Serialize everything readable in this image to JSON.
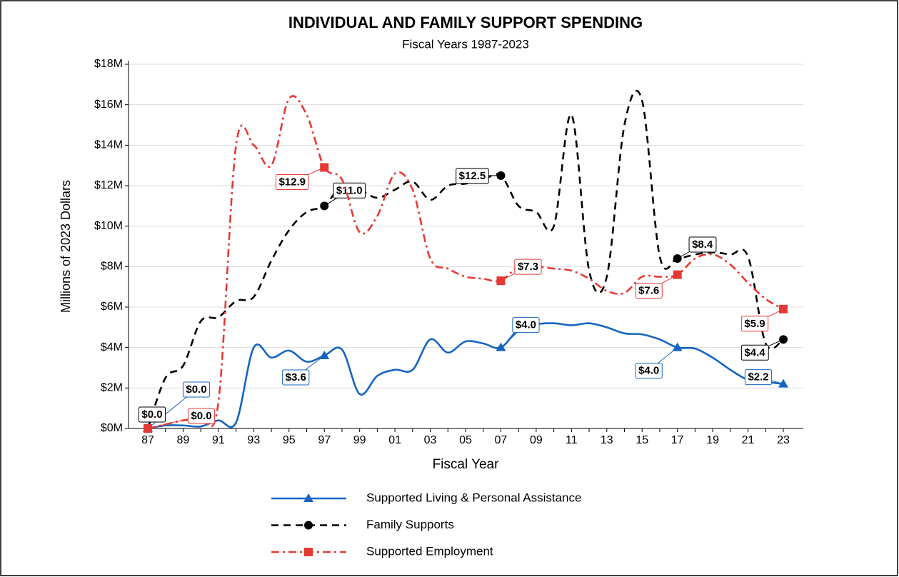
{
  "chart_data": {
    "type": "line",
    "title": "INDIVIDUAL AND FAMILY SUPPORT SPENDING",
    "subtitle": "Fiscal Years 1987-2023",
    "y_label": "Millions of 2023 Dollars",
    "x_label": "Fiscal Year",
    "categories": [
      "87",
      null,
      "89",
      null,
      "91",
      null,
      "93",
      null,
      "95",
      null,
      "97",
      null,
      "99",
      null,
      "01",
      null,
      "03",
      null,
      "05",
      null,
      "07",
      null,
      "09",
      null,
      "11",
      null,
      "13",
      null,
      "15",
      null,
      "17",
      null,
      "19",
      null,
      "21",
      null,
      "23"
    ],
    "ylim": [
      0,
      18
    ],
    "yticks": [
      {
        "value": 0,
        "label": "$0M"
      },
      {
        "value": 2,
        "label": "$2M"
      },
      {
        "value": 4,
        "label": "$4M"
      },
      {
        "value": 6,
        "label": "$6M"
      },
      {
        "value": 8,
        "label": "$8M"
      },
      {
        "value": 10,
        "label": "$10M"
      },
      {
        "value": 12,
        "label": "$12M"
      },
      {
        "value": 14,
        "label": "$14M"
      },
      {
        "value": 16,
        "label": "$16M"
      },
      {
        "value": 18,
        "label": "$18M"
      }
    ],
    "grid": true,
    "series": [
      {
        "name": "Supported Living & Personal Assistance",
        "color": "#1565c0",
        "marker": "triangle",
        "dash": "solid",
        "values": [
          0.0,
          0.15,
          0.15,
          0.1,
          0.4,
          0.3,
          4.0,
          3.5,
          3.85,
          3.3,
          3.6,
          3.9,
          1.7,
          2.6,
          2.9,
          2.9,
          4.4,
          3.75,
          4.3,
          4.2,
          4.0,
          4.9,
          5.15,
          5.2,
          5.1,
          5.2,
          5.0,
          4.7,
          4.65,
          4.4,
          4.0,
          3.95,
          3.5,
          2.9,
          2.4,
          2.3,
          2.2
        ],
        "value_labels": [
          "$0.0",
          null,
          null,
          null,
          null,
          null,
          null,
          null,
          null,
          null,
          "$3.6",
          null,
          null,
          null,
          null,
          null,
          null,
          null,
          null,
          null,
          "$4.0",
          null,
          null,
          null,
          null,
          null,
          null,
          null,
          null,
          null,
          "$4.0",
          null,
          null,
          null,
          null,
          null,
          "$2.2"
        ]
      },
      {
        "name": "Family Supports",
        "color": "#000000",
        "marker": "circle",
        "dash": "dashed",
        "values": [
          0.0,
          2.5,
          3.1,
          5.3,
          5.5,
          6.3,
          6.5,
          8.3,
          9.8,
          10.7,
          11.0,
          12.0,
          11.8,
          11.4,
          11.8,
          12.2,
          11.3,
          12.0,
          12.1,
          12.3,
          12.5,
          11.0,
          10.7,
          10.0,
          15.5,
          7.8,
          7.5,
          15.0,
          16.2,
          8.5,
          8.4,
          8.6,
          8.7,
          8.6,
          8.5,
          4.2,
          4.4
        ],
        "value_labels": [
          "$0.0",
          null,
          null,
          null,
          null,
          null,
          null,
          null,
          null,
          null,
          "$11.0",
          null,
          null,
          null,
          null,
          null,
          null,
          null,
          null,
          null,
          "$12.5",
          null,
          null,
          null,
          null,
          null,
          null,
          null,
          null,
          null,
          "$8.4",
          null,
          null,
          null,
          null,
          null,
          "$4.4"
        ]
      },
      {
        "name": "Supported Employment",
        "color": "#e53935",
        "marker": "square",
        "dash": "dashdot",
        "values": [
          0.0,
          0.2,
          0.4,
          0.5,
          1.3,
          14.0,
          14.0,
          13.0,
          16.3,
          15.5,
          12.9,
          12.3,
          9.7,
          10.5,
          12.6,
          11.8,
          8.4,
          7.9,
          7.5,
          7.4,
          7.3,
          8.0,
          8.0,
          7.9,
          7.8,
          7.4,
          6.8,
          6.7,
          7.5,
          7.5,
          7.6,
          8.4,
          8.6,
          8.1,
          7.2,
          6.4,
          5.9
        ],
        "value_labels": [
          "$0.0",
          null,
          null,
          null,
          null,
          null,
          null,
          null,
          null,
          null,
          "$12.9",
          null,
          null,
          null,
          null,
          null,
          null,
          null,
          null,
          null,
          "$7.3",
          null,
          null,
          null,
          null,
          null,
          null,
          null,
          null,
          null,
          "$7.6",
          null,
          null,
          null,
          null,
          null,
          "$5.9"
        ]
      }
    ]
  }
}
